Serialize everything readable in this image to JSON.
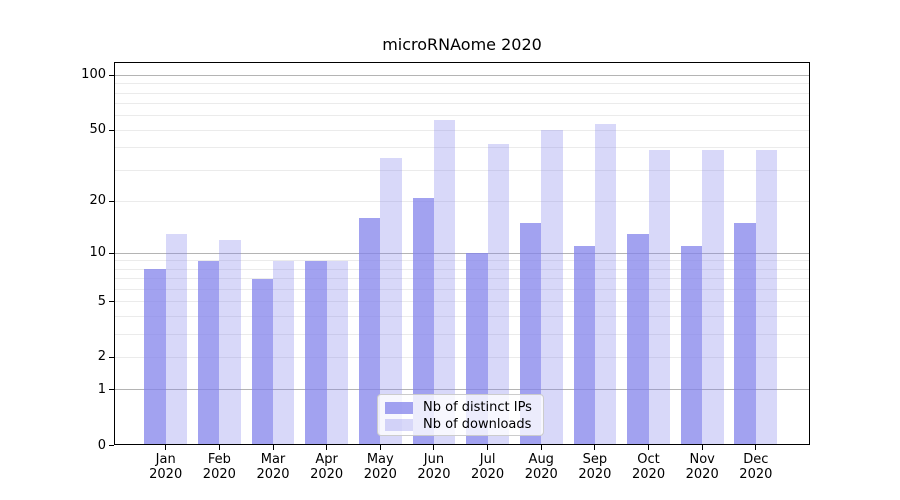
{
  "title": "microRNAome 2020",
  "chart_data": {
    "type": "bar",
    "title": "microRNAome 2020",
    "categories": [
      "Jan 2020",
      "Feb 2020",
      "Mar 2020",
      "Apr 2020",
      "May 2020",
      "Jun 2020",
      "Jul 2020",
      "Aug 2020",
      "Sep 2020",
      "Oct 2020",
      "Nov 2020",
      "Dec 2020"
    ],
    "x_months": [
      "Jan",
      "Feb",
      "Mar",
      "Apr",
      "May",
      "Jun",
      "Jul",
      "Aug",
      "Sep",
      "Oct",
      "Nov",
      "Dec"
    ],
    "x_year": "2020",
    "series": [
      {
        "name": "Nb of distinct IPs",
        "color": "rgba(129,129,235,0.74)",
        "values": [
          8,
          9,
          7,
          9,
          16,
          21,
          10,
          15,
          11,
          13,
          11,
          15
        ]
      },
      {
        "name": "Nb of downloads",
        "color": "rgba(129,129,235,0.31)",
        "values": [
          13,
          12,
          9,
          9,
          35,
          57,
          42,
          50,
          54,
          39,
          39,
          39
        ]
      }
    ],
    "y_scale": "symlog_ln(1+v)",
    "y_ticks": [
      0,
      1,
      2,
      5,
      10,
      20,
      50,
      100
    ],
    "y_major_gridlines": [
      1,
      10,
      100
    ],
    "y_minor_gridlines": [
      2,
      3,
      4,
      5,
      6,
      7,
      8,
      9,
      20,
      30,
      40,
      50,
      60,
      70,
      80,
      90
    ],
    "ylim": [
      0,
      120
    ],
    "grid": true,
    "legend_position": "lower center"
  },
  "colors": {
    "major_grid": "#b4b4b4",
    "minor_grid": "#ebebeb",
    "spine": "#000000",
    "bar_dark": "rgba(129,129,235,0.74)",
    "bar_light": "rgba(129,129,235,0.31)",
    "legend_border": "#cccccc",
    "legend_bg": "rgba(255,255,255,0.8)"
  }
}
